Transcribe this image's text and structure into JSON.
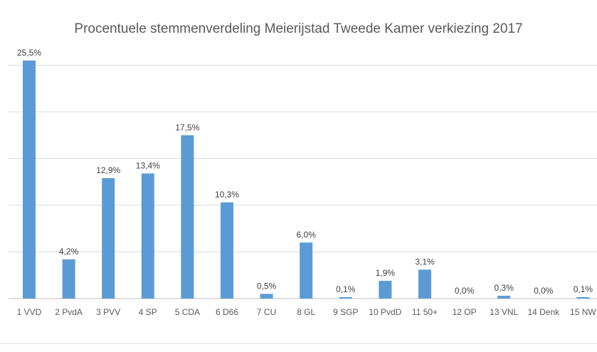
{
  "chart_data": {
    "type": "bar",
    "title": "Procentuele stemmenverdeling Meierijstad Tweede Kamer verkiezing 2017",
    "xlabel": "",
    "ylabel": "",
    "ylim": [
      0,
      25
    ],
    "grid": true,
    "legend": "none",
    "bar_color": "#5b9bd5",
    "grid_color": "#d9d9d9",
    "categories": [
      "1 VVD",
      "2 PvdA",
      "3 PVV",
      "4 SP",
      "5 CDA",
      "6 D66",
      "7 CU",
      "8 GL",
      "9 SGP",
      "10 PvdD",
      "11 50+",
      "12 OP",
      "13 VNL",
      "14 Denk",
      "15 NW"
    ],
    "values": [
      25.5,
      4.2,
      12.9,
      13.4,
      17.5,
      10.3,
      0.5,
      6.0,
      0.1,
      1.9,
      3.1,
      0.0,
      0.3,
      0.0,
      0.1
    ],
    "data_labels": [
      "25,5%",
      "4,2%",
      "12,9%",
      "13,4%",
      "17,5%",
      "10,3%",
      "0,5%",
      "6,0%",
      "0,1%",
      "1,9%",
      "3,1%",
      "0,0%",
      "0,3%",
      "0,0%",
      "0,1%"
    ]
  }
}
